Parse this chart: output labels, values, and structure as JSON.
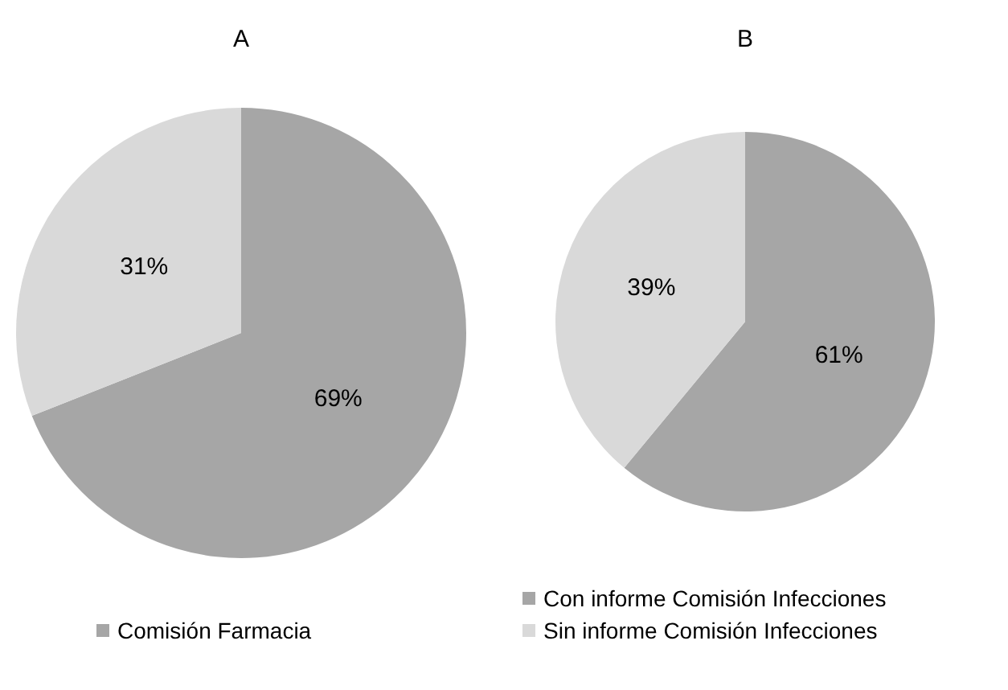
{
  "chart_data": [
    {
      "type": "pie",
      "title": "A",
      "categories": [
        "Comisión Farmacia",
        null
      ],
      "values": [
        69,
        31
      ],
      "colors": [
        "#a6a6a6",
        "#d9d9d9"
      ],
      "value_labels": [
        "69%",
        "31%"
      ],
      "legend": "bottom"
    },
    {
      "type": "pie",
      "title": "B",
      "categories": [
        "Con informe Comisión Infecciones",
        "Sin informe Comisión Infecciones"
      ],
      "values": [
        61,
        39
      ],
      "colors": [
        "#a6a6a6",
        "#d9d9d9"
      ],
      "value_labels": [
        "61%",
        "39%"
      ],
      "legend": "bottom"
    }
  ]
}
